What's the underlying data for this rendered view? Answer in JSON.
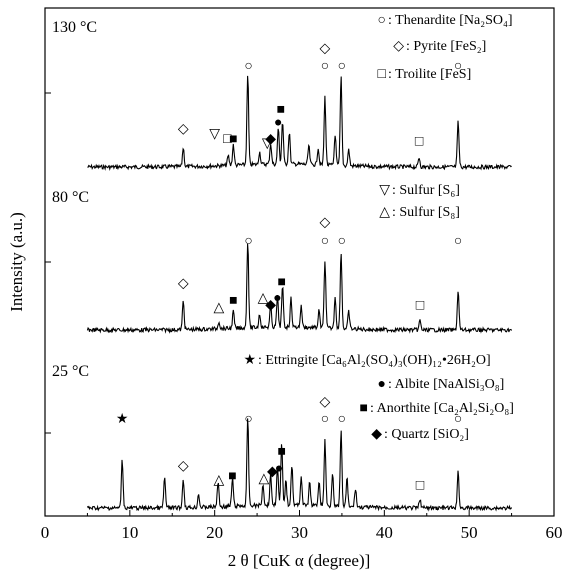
{
  "chart_data": {
    "type": "line",
    "xlabel": "2 θ  [CuK α  (degree)]",
    "ylabel": "Intensity (a.u.)",
    "xlim": [
      0,
      60
    ],
    "xticks": [
      0,
      10,
      20,
      30,
      40,
      50,
      60
    ],
    "grid": false,
    "series": [
      {
        "name": "130 °C",
        "label": "130 °C"
      },
      {
        "name": "80 °C",
        "label": "80 °C"
      },
      {
        "name": "25 °C",
        "label": "25 °C"
      }
    ],
    "peaks": [
      {
        "series": 0,
        "x": [
          16.3,
          21.6,
          22.2,
          23.9,
          25.3,
          26.6,
          27.5,
          28.0,
          28.8,
          31.1,
          32.2,
          33.0,
          34.2,
          34.9,
          35.8,
          44.1,
          48.7
        ],
        "h": [
          20,
          10,
          22,
          95,
          13,
          22,
          38,
          45,
          34,
          20,
          18,
          72,
          33,
          94,
          17,
          10,
          48
        ]
      },
      {
        "series": 1,
        "x": [
          16.3,
          20.5,
          22.2,
          23.9,
          25.3,
          26.6,
          27.4,
          28.0,
          29.0,
          30.2,
          32.3,
          33.0,
          34.2,
          34.9,
          35.8,
          44.2,
          48.7
        ],
        "h": [
          30,
          8,
          18,
          92,
          14,
          22,
          32,
          42,
          30,
          22,
          18,
          72,
          34,
          82,
          18,
          10,
          42
        ]
      },
      {
        "series": 2,
        "x": [
          9.1,
          14.1,
          16.3,
          18.1,
          20.4,
          22.1,
          23.9,
          25.7,
          26.6,
          27.4,
          27.9,
          28.4,
          29.1,
          30.2,
          31.2,
          32.3,
          33.0,
          33.9,
          34.9,
          35.6,
          36.6,
          44.2,
          48.7
        ],
        "h": [
          52,
          32,
          30,
          14,
          26,
          30,
          92,
          22,
          33,
          42,
          64,
          26,
          42,
          30,
          24,
          26,
          70,
          36,
          80,
          30,
          20,
          10,
          38
        ]
      }
    ],
    "markers": [
      {
        "symbol": "○",
        "x": 24.0,
        "series": 0,
        "level": 1.0
      },
      {
        "symbol": "○",
        "x": 33.0,
        "series": 0,
        "level": 1.0
      },
      {
        "symbol": "○",
        "x": 35.0,
        "series": 0,
        "level": 1.0
      },
      {
        "symbol": "○",
        "x": 48.7,
        "series": 0,
        "level": 1.0
      },
      {
        "symbol": "◇",
        "x": 33.0,
        "series": 0,
        "level": 1.18
      },
      {
        "symbol": "◇",
        "x": 16.3,
        "series": 0,
        "level": 0.35
      },
      {
        "symbol": "▽",
        "x": 20.0,
        "series": 0,
        "level": 0.3
      },
      {
        "symbol": "▽",
        "x": 26.2,
        "series": 0,
        "level": 0.2
      },
      {
        "symbol": "□",
        "x": 21.5,
        "series": 0,
        "level": 0.25
      },
      {
        "symbol": "□",
        "x": 44.1,
        "series": 0,
        "level": 0.22
      },
      {
        "symbol": "■",
        "x": 22.2,
        "series": 0,
        "level": 0.25
      },
      {
        "symbol": "■",
        "x": 27.8,
        "series": 0,
        "level": 0.55
      },
      {
        "symbol": "●",
        "x": 27.5,
        "series": 0,
        "level": 0.42
      },
      {
        "symbol": "◆",
        "x": 26.6,
        "series": 0,
        "level": 0.25
      },
      {
        "symbol": "○",
        "x": 24.0,
        "series": 1,
        "level": 1.0
      },
      {
        "symbol": "○",
        "x": 33.0,
        "series": 1,
        "level": 1.0
      },
      {
        "symbol": "○",
        "x": 35.0,
        "series": 1,
        "level": 1.0
      },
      {
        "symbol": "○",
        "x": 48.7,
        "series": 1,
        "level": 1.0
      },
      {
        "symbol": "◇",
        "x": 33.0,
        "series": 1,
        "level": 1.22
      },
      {
        "symbol": "◇",
        "x": 16.3,
        "series": 1,
        "level": 0.5
      },
      {
        "symbol": "△",
        "x": 20.5,
        "series": 1,
        "level": 0.22
      },
      {
        "symbol": "△",
        "x": 25.7,
        "series": 1,
        "level": 0.33
      },
      {
        "symbol": "□",
        "x": 44.2,
        "series": 1,
        "level": 0.24
      },
      {
        "symbol": "■",
        "x": 22.2,
        "series": 1,
        "level": 0.3
      },
      {
        "symbol": "■",
        "x": 27.9,
        "series": 1,
        "level": 0.52
      },
      {
        "symbol": "●",
        "x": 27.4,
        "series": 1,
        "level": 0.33
      },
      {
        "symbol": "◆",
        "x": 26.6,
        "series": 1,
        "level": 0.25
      },
      {
        "symbol": "★",
        "x": 9.1,
        "series": 2,
        "level": 1.0
      },
      {
        "symbol": "○",
        "x": 24.0,
        "series": 2,
        "level": 1.0
      },
      {
        "symbol": "○",
        "x": 33.0,
        "series": 2,
        "level": 1.0
      },
      {
        "symbol": "○",
        "x": 35.0,
        "series": 2,
        "level": 1.0
      },
      {
        "symbol": "○",
        "x": 48.7,
        "series": 2,
        "level": 1.0
      },
      {
        "symbol": "◇",
        "x": 33.0,
        "series": 2,
        "level": 1.2
      },
      {
        "symbol": "◇",
        "x": 16.3,
        "series": 2,
        "level": 0.45
      },
      {
        "symbol": "△",
        "x": 20.5,
        "series": 2,
        "level": 0.28
      },
      {
        "symbol": "△",
        "x": 25.8,
        "series": 2,
        "level": 0.3
      },
      {
        "symbol": "□",
        "x": 44.2,
        "series": 2,
        "level": 0.22
      },
      {
        "symbol": "■",
        "x": 22.1,
        "series": 2,
        "level": 0.33
      },
      {
        "symbol": "■",
        "x": 27.9,
        "series": 2,
        "level": 0.62
      },
      {
        "symbol": "●",
        "x": 27.6,
        "series": 2,
        "level": 0.42
      },
      {
        "symbol": "◆",
        "x": 26.8,
        "series": 2,
        "level": 0.38
      }
    ],
    "legend": [
      {
        "symbol": "○",
        "text": ": Thenardite [Na₂SO₄]"
      },
      {
        "symbol": "◇",
        "text": ": Pyrite [FeS₂]"
      },
      {
        "symbol": "□",
        "text": ": Troilite [FeS]"
      },
      {
        "symbol": "▽",
        "text": ": Sulfur [S₆]"
      },
      {
        "symbol": "△",
        "text": ": Sulfur [S₈]"
      },
      {
        "symbol": "★",
        "text": ": Ettringite [Ca₆Al₂(SO₄)₃(OH)₁₂•26H₂O]"
      },
      {
        "symbol": "●",
        "text": ": Albite [NaAlSi₃O₈]"
      },
      {
        "symbol": "■",
        "text": ": Anorthite [Ca₂Al₂Si₂O₈]"
      },
      {
        "symbol": "◆",
        "text": ": Quartz [SiO₂]"
      }
    ]
  }
}
